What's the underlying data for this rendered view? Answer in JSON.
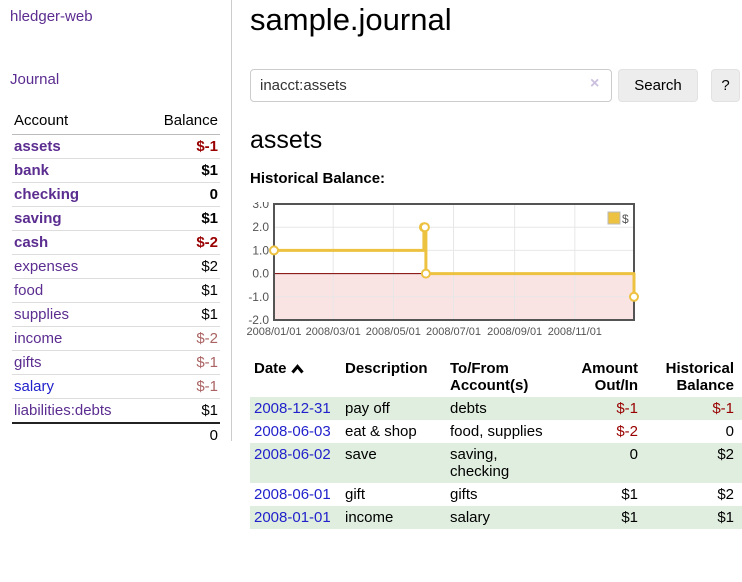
{
  "app": {
    "title": "hledger-web"
  },
  "sidebar": {
    "journal_link": "Journal",
    "accounts_table": {
      "headers": {
        "account": "Account",
        "balance": "Balance"
      },
      "rows": [
        {
          "name": "assets",
          "balance": "$-1"
        },
        {
          "name": "bank",
          "balance": "$1"
        },
        {
          "name": "checking",
          "balance": "0"
        },
        {
          "name": "saving",
          "balance": "$1"
        },
        {
          "name": "cash",
          "balance": "$-2"
        },
        {
          "name": "expenses",
          "balance": "$2"
        },
        {
          "name": "food",
          "balance": "$1"
        },
        {
          "name": "supplies",
          "balance": "$1"
        },
        {
          "name": "income",
          "balance": "$-2"
        },
        {
          "name": "gifts",
          "balance": "$-1"
        },
        {
          "name": "salary",
          "balance": "$-1"
        },
        {
          "name": "liabilities:debts",
          "balance": "$1"
        }
      ],
      "total": "0"
    }
  },
  "header": {
    "title": "sample.journal"
  },
  "search": {
    "value": "inacct:assets",
    "clear_icon": "×",
    "button_label": "Search",
    "help_label": "?"
  },
  "account_page": {
    "heading": "assets",
    "chart_label": "Historical Balance:"
  },
  "chart_data": {
    "type": "line",
    "title": "Historical Balance:",
    "series": [
      {
        "name": "$",
        "color": "#EDC240",
        "steps": true,
        "points": [
          [
            "2008-01-01",
            1
          ],
          [
            "2008-06-01",
            2
          ],
          [
            "2008-06-02",
            2
          ],
          [
            "2008-06-03",
            0
          ],
          [
            "2008-12-31",
            -1
          ]
        ]
      }
    ],
    "x_range": [
      "2008-01-01",
      "2008-12-31"
    ],
    "x_ticks": [
      "2008/01/01",
      "2008/03/01",
      "2008/05/01",
      "2008/07/01",
      "2008/09/01",
      "2008/11/01"
    ],
    "y_ticks": [
      3.0,
      2.0,
      1.0,
      0.0,
      -1.0,
      -2.0
    ],
    "ylim": [
      -2,
      3
    ],
    "grid": true,
    "legend_position": "top-right",
    "negative_region_fill": "#FAE3E3",
    "zero_line_color": "#800000",
    "border_color": "#545454",
    "tick_color": "#545454"
  },
  "register": {
    "headers": {
      "date": "Date",
      "description": "Description",
      "accounts": "To/From Account(s)",
      "amount": "Amount Out/In",
      "balance": "Historical Balance"
    },
    "rows": [
      {
        "date": "2008-12-31",
        "description": "pay off",
        "accounts": "debts",
        "amount": "$-1",
        "balance": "$-1"
      },
      {
        "date": "2008-06-03",
        "description": "eat & shop",
        "accounts": "food, supplies",
        "amount": "$-2",
        "balance": "0"
      },
      {
        "date": "2008-06-02",
        "description": "save",
        "accounts": "saving, checking",
        "amount": "0",
        "balance": "$2"
      },
      {
        "date": "2008-06-01",
        "description": "gift",
        "accounts": "gifts",
        "amount": "$1",
        "balance": "$2"
      },
      {
        "date": "2008-01-01",
        "description": "income",
        "accounts": "salary",
        "amount": "$1",
        "balance": "$1"
      }
    ]
  },
  "colors": {
    "sidebar_link_purple": "#5B2D90",
    "link_blue": "#2222CC",
    "negative_strong": "#990000",
    "negative_muted": "#AA6363",
    "row_stripe_green": "#DFEEDE",
    "button_gray": "#EDEDED"
  }
}
